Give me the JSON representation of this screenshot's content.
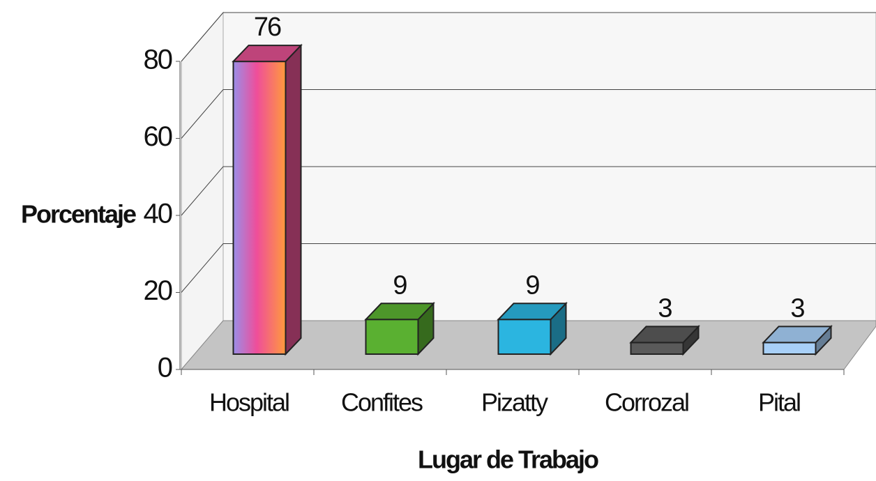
{
  "chart_data": {
    "type": "bar3d",
    "categories": [
      "Hospital",
      "Confites",
      "Pizatty",
      "Corrozal",
      "Pital"
    ],
    "values": [
      76,
      9,
      9,
      3,
      3
    ],
    "colors": [
      "#e0508f",
      "#5ab031",
      "#2bb5e0",
      "#5a5a5a",
      "#a8d0f8"
    ],
    "ylim": [
      0,
      80
    ],
    "yticks": [
      0,
      20,
      40,
      60,
      80
    ],
    "xlabel": "Lugar de Trabajo",
    "ylabel": "Porcentaje",
    "grid": true
  }
}
